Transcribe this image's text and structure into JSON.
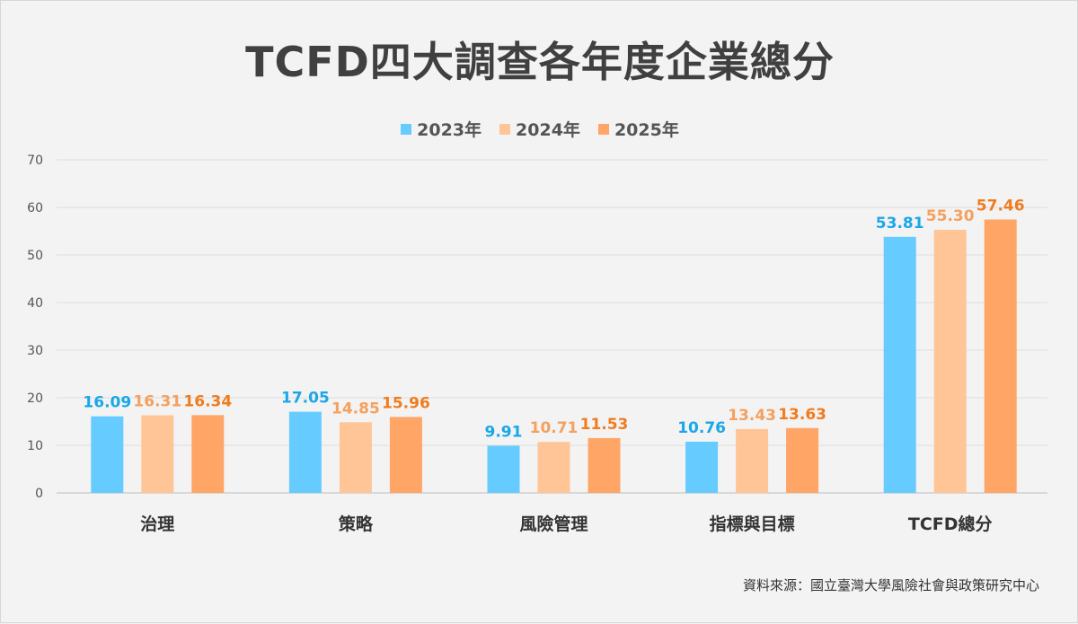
{
  "chart_data": {
    "type": "bar",
    "title": "TCFD四大調查各年度企業總分",
    "categories": [
      "治理",
      "策略",
      "風險管理",
      "指標與目標",
      "TCFD總分"
    ],
    "series": [
      {
        "name": "2023年",
        "color": "#66cbff",
        "label_color": "#1aa7e8",
        "values": [
          16.09,
          17.05,
          9.91,
          10.76,
          53.81
        ],
        "labels": [
          "16.09",
          "17.05",
          "9.91",
          "10.76",
          "53.81"
        ]
      },
      {
        "name": "2024年",
        "color": "#ffc596",
        "label_color": "#f5a05e",
        "values": [
          16.31,
          14.85,
          10.71,
          13.43,
          55.3
        ],
        "labels": [
          "16.31",
          "14.85",
          "10.71",
          "13.43",
          "55.30"
        ]
      },
      {
        "name": "2025年",
        "color": "#ffa566",
        "label_color": "#f07c1e",
        "values": [
          16.34,
          15.96,
          11.53,
          13.63,
          57.46
        ],
        "labels": [
          "16.34",
          "15.96",
          "11.53",
          "13.63",
          "57.46"
        ]
      }
    ],
    "yticks": [
      "0",
      "10",
      "20",
      "30",
      "40",
      "50",
      "60",
      "70"
    ],
    "ylim": [
      0,
      70
    ],
    "grid": true,
    "legend_position": "top-center",
    "source": "資料來源：國立臺灣大學風險社會與政策研究中心"
  }
}
